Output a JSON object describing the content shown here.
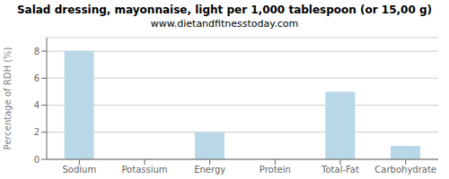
{
  "chart_data": {
    "type": "bar",
    "title": "Salad dressing, mayonnaise, light per 1,000 tablespoon (or 15,00 g)",
    "subtitle": "www.dietandfitnesstoday.com",
    "categories": [
      "Sodium",
      "Potassium",
      "Energy",
      "Protein",
      "Total-Fat",
      "Carbohydrate"
    ],
    "values": [
      8.0,
      0.0,
      2.0,
      0.0,
      5.0,
      1.0
    ],
    "color": "#b8d8e8",
    "ylabel": "Percentage of RDH (%)",
    "ylim": [
      0,
      9
    ],
    "yticks": [
      0,
      2,
      4,
      6,
      8
    ],
    "grid": true
  }
}
